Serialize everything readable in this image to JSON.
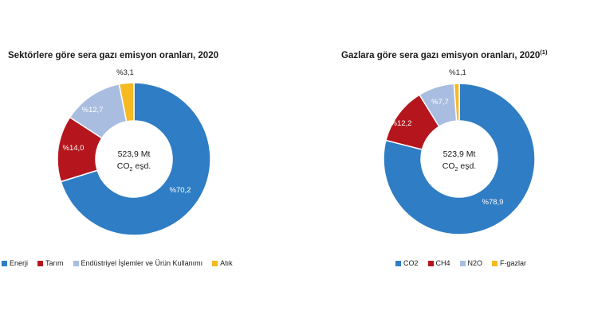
{
  "colors": {
    "blue": "#2f7dc4",
    "red": "#b5161d",
    "lightblue": "#a9bde0",
    "yellow": "#f5b922"
  },
  "chart_data": [
    {
      "type": "pie",
      "title": "Sektörlere göre sera gazı emisyon oranları, 2020",
      "title_sup": "",
      "center_line1": "523,9 Mt",
      "center_line2": "CO",
      "center_sub": "2",
      "center_line2_tail": " eşd.",
      "categories": [
        "Enerji",
        "Tarım",
        "Endüstriyel İşlemler ve Ürün Kullanımı",
        "Atık"
      ],
      "values": [
        70.2,
        14.0,
        12.7,
        3.1
      ],
      "labels": [
        "%70,2",
        "%14,0",
        "%12,7",
        "%3,1"
      ],
      "colors": [
        "#2f7dc4",
        "#b5161d",
        "#a9bde0",
        "#f5b922"
      ],
      "legend_position": "bottom"
    },
    {
      "type": "pie",
      "title": "Gazlara göre sera gazı emisyon oranları, 2020",
      "title_sup": "(1)",
      "center_line1": "523,9 Mt",
      "center_line2": "CO",
      "center_sub": "2",
      "center_line2_tail": " eşd.",
      "categories": [
        "CO2",
        "CH4",
        "N2O",
        "F-gazlar"
      ],
      "values": [
        78.9,
        12.2,
        7.7,
        1.1
      ],
      "labels": [
        "%78,9",
        "%12,2",
        "%7,7",
        "%1,1"
      ],
      "colors": [
        "#2f7dc4",
        "#b5161d",
        "#a9bde0",
        "#f5b922"
      ],
      "legend_position": "bottom"
    }
  ]
}
